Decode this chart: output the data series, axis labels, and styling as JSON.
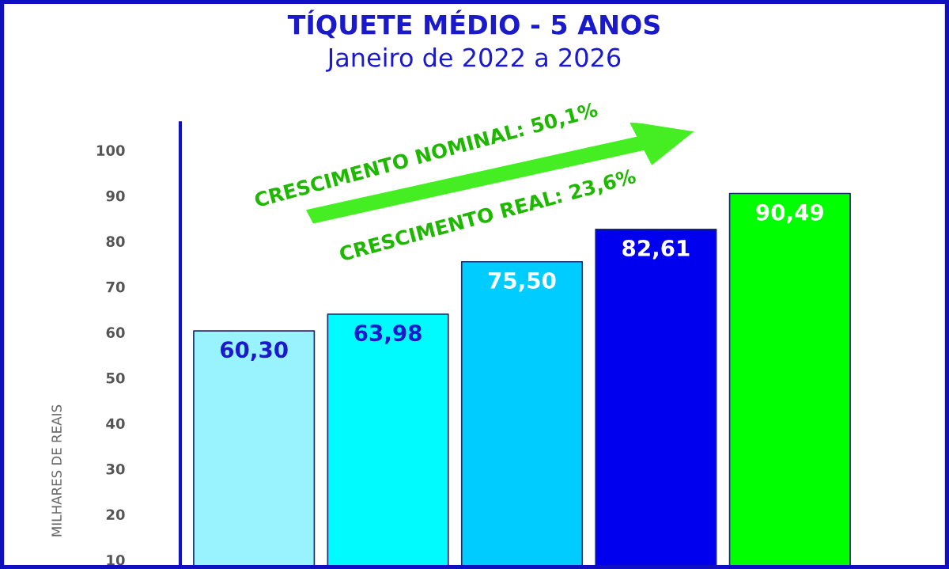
{
  "chart_data": {
    "type": "bar",
    "title": "TÍQUETE MÉDIO - 5 ANOS",
    "subtitle": "Janeiro de 2022 a 2026",
    "ylabel": "MILHARES DE REAIS",
    "categories": [
      null,
      null,
      null,
      null,
      null
    ],
    "values": [
      60.3,
      63.98,
      75.5,
      82.61,
      90.49
    ],
    "colors": [
      "#99f3ff",
      "#00fbff",
      "#00ccff",
      "#0000ee",
      "#00ff00"
    ],
    "value_labels": [
      "60,30",
      "63,98",
      "75,50",
      "82,61",
      "90,49"
    ],
    "ylim": [
      8,
      106
    ],
    "yticks": [
      10,
      20,
      30,
      40,
      50,
      60,
      70,
      80,
      90,
      100
    ],
    "grid": false,
    "legend": false,
    "annotations": [
      "CRESCIMENTO NOMINAL: 50,1%",
      "CRESCIMENTO REAL: 23,6%"
    ]
  }
}
